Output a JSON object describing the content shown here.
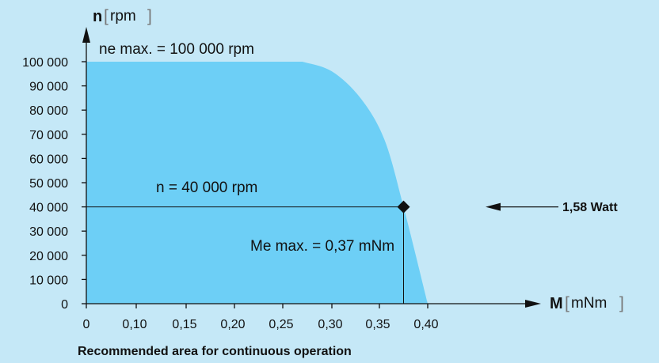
{
  "chart_data": {
    "type": "area",
    "x_axis": {
      "symbol": "M",
      "unit": "mNm",
      "ticks": [
        0,
        0.1,
        0.15,
        0.2,
        0.25,
        0.3,
        0.35,
        0.4
      ],
      "tick_labels": [
        "0",
        "0,10",
        "0,15",
        "0,20",
        "0,25",
        "0,30",
        "0,35",
        "0,40"
      ]
    },
    "y_axis": {
      "symbol": "n",
      "unit": "rpm",
      "ticks": [
        0,
        10000,
        20000,
        30000,
        40000,
        50000,
        60000,
        70000,
        80000,
        90000,
        100000
      ],
      "tick_labels": [
        "0",
        "10 000",
        "20 000",
        "30 000",
        "40 000",
        "50 000",
        "60 000",
        "70 000",
        "80 000",
        "90 000",
        "100 000"
      ]
    },
    "area_boundary": [
      {
        "x": 0,
        "y": 100000
      },
      {
        "x": 0.27,
        "y": 100000
      },
      {
        "x": 0.3,
        "y": 96000
      },
      {
        "x": 0.33,
        "y": 85000
      },
      {
        "x": 0.355,
        "y": 68000
      },
      {
        "x": 0.375,
        "y": 40000
      },
      {
        "x": 0.4,
        "y": 0
      }
    ],
    "operating_point": {
      "x": 0.375,
      "y": 40000
    },
    "annotations": {
      "max_speed": "ne max. = 100 000 rpm",
      "speed_line": "n = 40 000 rpm",
      "max_torque": "Me max. = 0,37 mNm",
      "power": "1,58 Watt"
    },
    "caption": "Recommended area for continuous operation",
    "colors": {
      "background": "#c5e8f7",
      "area": "#6dcff6",
      "lines": "#111111"
    }
  }
}
